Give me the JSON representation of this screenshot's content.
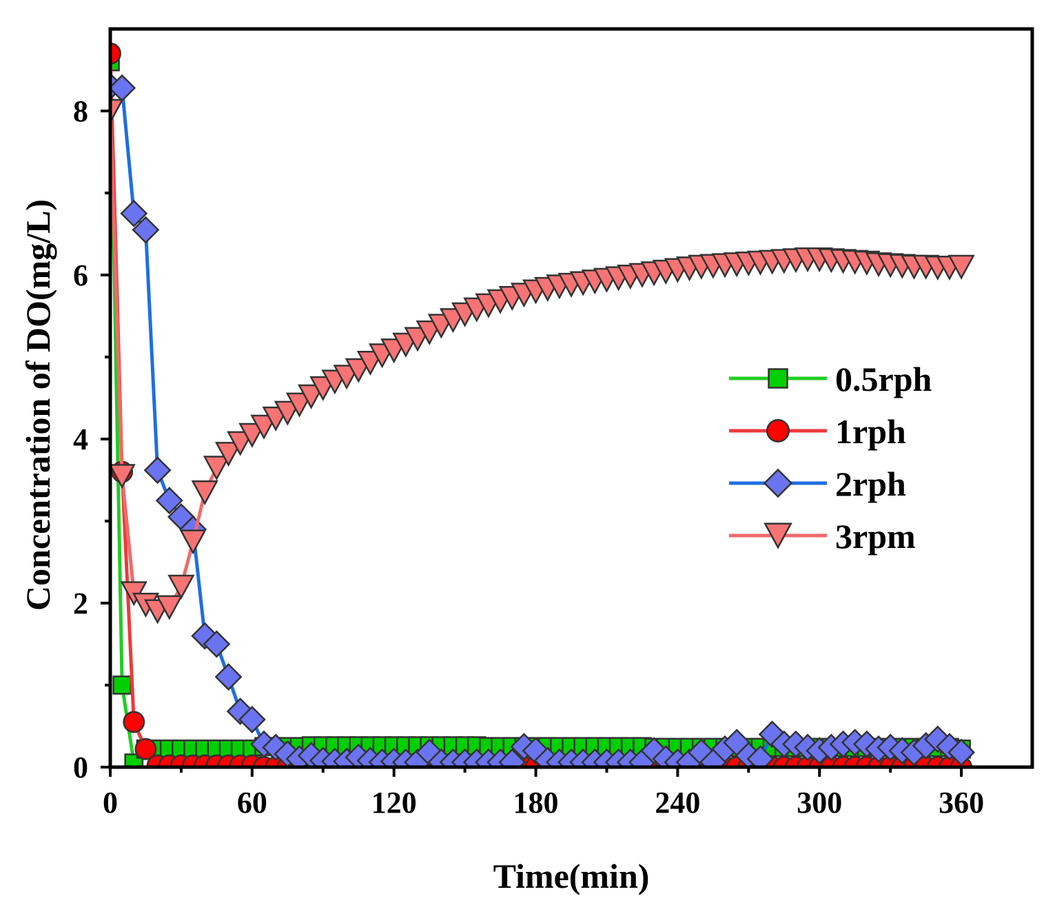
{
  "chart_data": {
    "type": "line",
    "title": "",
    "xlabel": "Time(min)",
    "ylabel": "Concentration of DO(mg/L)",
    "xlim": [
      0,
      390
    ],
    "ylim": [
      0,
      9
    ],
    "xticks": [
      0,
      60,
      120,
      180,
      240,
      300,
      360
    ],
    "xtick_labels": [
      "0",
      "60",
      "120",
      "180",
      "240",
      "300",
      "360"
    ],
    "yticks": [
      0,
      2,
      4,
      6,
      8
    ],
    "ytick_labels": [
      "0",
      "2",
      "4",
      "6",
      "8"
    ],
    "legend_position": "right-middle",
    "series": [
      {
        "name": "0.5rph",
        "marker": "square",
        "line_color": "#22cc22",
        "marker_color": "#00d000",
        "x": [
          0,
          5,
          10,
          15,
          20,
          25,
          30,
          35,
          40,
          45,
          50,
          55,
          60,
          65,
          70,
          75,
          80,
          85,
          90,
          95,
          100,
          105,
          110,
          115,
          120,
          125,
          130,
          135,
          140,
          145,
          150,
          155,
          160,
          165,
          170,
          175,
          180,
          185,
          190,
          195,
          200,
          205,
          210,
          215,
          220,
          225,
          230,
          235,
          240,
          245,
          250,
          255,
          260,
          265,
          270,
          275,
          280,
          285,
          290,
          295,
          300,
          305,
          310,
          315,
          320,
          325,
          330,
          335,
          340,
          345,
          350,
          355,
          360
        ],
        "y": [
          8.6,
          1.0,
          0.05,
          0.22,
          0.22,
          0.22,
          0.22,
          0.22,
          0.22,
          0.22,
          0.22,
          0.22,
          0.22,
          0.25,
          0.25,
          0.25,
          0.25,
          0.26,
          0.26,
          0.26,
          0.26,
          0.26,
          0.26,
          0.26,
          0.26,
          0.26,
          0.26,
          0.26,
          0.26,
          0.26,
          0.26,
          0.26,
          0.25,
          0.25,
          0.25,
          0.25,
          0.25,
          0.25,
          0.25,
          0.25,
          0.25,
          0.25,
          0.25,
          0.25,
          0.25,
          0.25,
          0.24,
          0.24,
          0.24,
          0.24,
          0.24,
          0.24,
          0.24,
          0.24,
          0.24,
          0.24,
          0.24,
          0.24,
          0.24,
          0.24,
          0.24,
          0.24,
          0.24,
          0.24,
          0.24,
          0.24,
          0.24,
          0.24,
          0.24,
          0.24,
          0.24,
          0.24,
          0.22
        ]
      },
      {
        "name": "1rph",
        "marker": "circle",
        "line_color": "#ee3a3a",
        "marker_color": "#ff0000",
        "x": [
          0,
          5,
          10,
          15,
          20,
          25,
          30,
          35,
          40,
          45,
          50,
          55,
          60,
          65,
          70,
          75,
          80,
          85,
          90,
          95,
          100,
          105,
          110,
          115,
          120,
          125,
          130,
          135,
          140,
          145,
          150,
          155,
          160,
          165,
          170,
          175,
          180,
          185,
          190,
          195,
          200,
          205,
          210,
          215,
          220,
          225,
          230,
          235,
          240,
          245,
          250,
          255,
          260,
          265,
          270,
          275,
          280,
          285,
          290,
          295,
          300,
          305,
          310,
          315,
          320,
          325,
          330,
          335,
          340,
          345,
          350,
          355,
          360
        ],
        "y": [
          8.7,
          3.6,
          0.55,
          0.22,
          0.02,
          0.02,
          0.02,
          0.02,
          0.02,
          0.02,
          0.02,
          0.02,
          0.02,
          0.0,
          0.0,
          0.0,
          0.0,
          0.0,
          0.0,
          0.0,
          0.0,
          0.0,
          0.0,
          0.0,
          0.0,
          0.0,
          0.0,
          0.0,
          0.0,
          0.0,
          0.0,
          0.0,
          0.0,
          0.0,
          0.0,
          0.0,
          0.0,
          0.0,
          0.0,
          0.0,
          0.0,
          0.0,
          0.0,
          0.0,
          0.0,
          0.0,
          0.0,
          0.0,
          0.0,
          0.0,
          0.0,
          0.0,
          0.0,
          0.0,
          0.0,
          0.0,
          0.0,
          0.0,
          0.0,
          0.0,
          0.0,
          0.0,
          0.0,
          0.0,
          0.0,
          0.0,
          0.0,
          0.0,
          0.0,
          0.0,
          0.0,
          0.0,
          0.0
        ]
      },
      {
        "name": "2rph",
        "marker": "diamond",
        "line_color": "#1f6fe0",
        "marker_color": "#6b74f0",
        "x": [
          0,
          5,
          10,
          15,
          20,
          25,
          30,
          35,
          40,
          45,
          50,
          55,
          60,
          65,
          70,
          75,
          80,
          85,
          90,
          95,
          100,
          105,
          110,
          115,
          120,
          125,
          130,
          135,
          140,
          145,
          150,
          155,
          160,
          165,
          170,
          175,
          180,
          185,
          190,
          195,
          200,
          205,
          210,
          215,
          220,
          225,
          230,
          235,
          240,
          245,
          250,
          255,
          260,
          265,
          270,
          275,
          280,
          285,
          290,
          295,
          300,
          305,
          310,
          315,
          320,
          325,
          330,
          335,
          340,
          345,
          350,
          355,
          360
        ],
        "y": [
          8.3,
          8.28,
          6.75,
          6.55,
          3.62,
          3.25,
          3.05,
          2.9,
          1.6,
          1.5,
          1.1,
          0.68,
          0.58,
          0.28,
          0.24,
          0.16,
          0.1,
          0.14,
          0.08,
          0.07,
          0.07,
          0.12,
          0.08,
          0.06,
          0.07,
          0.06,
          0.06,
          0.18,
          0.06,
          0.06,
          0.06,
          0.06,
          0.06,
          0.06,
          0.06,
          0.25,
          0.2,
          0.08,
          0.06,
          0.06,
          0.06,
          0.06,
          0.06,
          0.06,
          0.06,
          0.06,
          0.2,
          0.1,
          0.06,
          0.06,
          0.18,
          0.06,
          0.22,
          0.3,
          0.14,
          0.1,
          0.4,
          0.28,
          0.28,
          0.24,
          0.2,
          0.24,
          0.28,
          0.3,
          0.28,
          0.22,
          0.24,
          0.2,
          0.18,
          0.26,
          0.34,
          0.25,
          0.18
        ]
      },
      {
        "name": "3rpm",
        "marker": "triangle-down",
        "line_color": "#f06a6a",
        "marker_color": "#f87474",
        "x": [
          0,
          5,
          10,
          15,
          20,
          25,
          30,
          35,
          40,
          45,
          50,
          55,
          60,
          65,
          70,
          75,
          80,
          85,
          90,
          95,
          100,
          105,
          110,
          115,
          120,
          125,
          130,
          135,
          140,
          145,
          150,
          155,
          160,
          165,
          170,
          175,
          180,
          185,
          190,
          195,
          200,
          205,
          210,
          215,
          220,
          225,
          230,
          235,
          240,
          245,
          250,
          255,
          260,
          265,
          270,
          275,
          280,
          285,
          290,
          295,
          300,
          305,
          310,
          315,
          320,
          325,
          330,
          335,
          340,
          345,
          350,
          355,
          360
        ],
        "y": [
          8.0,
          3.55,
          2.12,
          1.98,
          1.9,
          1.95,
          2.2,
          2.75,
          3.35,
          3.65,
          3.82,
          3.95,
          4.05,
          4.15,
          4.25,
          4.32,
          4.42,
          4.52,
          4.62,
          4.7,
          4.76,
          4.84,
          4.93,
          5.02,
          5.08,
          5.15,
          5.22,
          5.3,
          5.38,
          5.45,
          5.52,
          5.58,
          5.63,
          5.68,
          5.72,
          5.76,
          5.8,
          5.83,
          5.86,
          5.88,
          5.9,
          5.92,
          5.94,
          5.96,
          5.98,
          6.0,
          6.02,
          6.04,
          6.06,
          6.08,
          6.1,
          6.11,
          6.12,
          6.13,
          6.14,
          6.15,
          6.16,
          6.17,
          6.18,
          6.19,
          6.19,
          6.18,
          6.17,
          6.16,
          6.15,
          6.13,
          6.12,
          6.11,
          6.1,
          6.1,
          6.09,
          6.09,
          6.1
        ]
      }
    ]
  }
}
